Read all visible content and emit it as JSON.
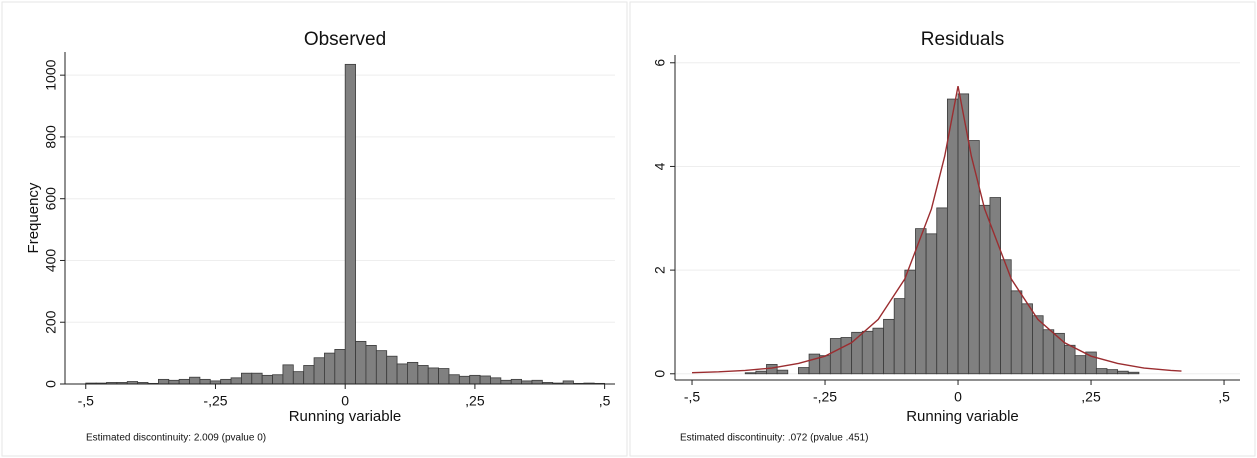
{
  "chart_data": [
    {
      "type": "histogram",
      "title": "Observed",
      "xlabel": "Running variable",
      "ylabel": "Frequency",
      "note": "Estimated discontinuity: 2.009 (pvalue 0)",
      "color": "#808080",
      "edgecolor": "#3a3a3a",
      "bins": [
        -0.5,
        -0.48,
        -0.46,
        -0.44,
        -0.42,
        -0.4,
        -0.38,
        -0.36,
        -0.34,
        -0.32,
        -0.3,
        -0.28,
        -0.26,
        -0.24,
        -0.22,
        -0.2,
        -0.18,
        -0.16,
        -0.14,
        -0.12,
        -0.1,
        -0.08,
        -0.06,
        -0.04,
        -0.02,
        0,
        0.02,
        0.04,
        0.06,
        0.08,
        0.1,
        0.12,
        0.14,
        0.16,
        0.18,
        0.2,
        0.22,
        0.24,
        0.26,
        0.28,
        0.3,
        0.32,
        0.34,
        0.36,
        0.38,
        0.4,
        0.42,
        0.44,
        0.46,
        0.48,
        0.5
      ],
      "values": [
        3,
        3,
        5,
        5,
        8,
        5,
        2,
        15,
        12,
        15,
        22,
        15,
        10,
        15,
        20,
        35,
        35,
        28,
        30,
        62,
        40,
        60,
        85,
        100,
        112,
        1035,
        138,
        125,
        108,
        90,
        65,
        70,
        60,
        52,
        50,
        30,
        25,
        28,
        26,
        20,
        12,
        15,
        10,
        12,
        5,
        3,
        10,
        2,
        3,
        2
      ],
      "xlim": [
        -0.54,
        0.52
      ],
      "xticks": [
        {
          "value": -0.5,
          "label": "-,5"
        },
        {
          "value": -0.25,
          "label": "-,25"
        },
        0,
        {
          "value": 0.25,
          "label": ",25"
        },
        {
          "value": 0.5,
          "label": ",5"
        }
      ],
      "ylim": [
        0,
        1075
      ],
      "yticks": [
        0,
        200,
        400,
        600,
        800,
        1000
      ],
      "grid": true
    },
    {
      "type": "histogram",
      "title": "Residuals",
      "xlabel": "Running variable",
      "note": "Estimated discontinuity: .072 (pvalue .451)",
      "color": "#808080",
      "edgecolor": "#3a3a3a",
      "bins": [
        -0.4,
        -0.38,
        -0.36,
        -0.34,
        -0.32,
        -0.3,
        -0.28,
        -0.26,
        -0.24,
        -0.22,
        -0.2,
        -0.18,
        -0.16,
        -0.14,
        -0.12,
        -0.1,
        -0.08,
        -0.06,
        -0.04,
        -0.02,
        0,
        0.02,
        0.04,
        0.06,
        0.08,
        0.1,
        0.12,
        0.14,
        0.16,
        0.18,
        0.2,
        0.22,
        0.24,
        0.26,
        0.28,
        0.3,
        0.32,
        0.34
      ],
      "values": [
        0.02,
        0.05,
        0.18,
        0.07,
        0,
        0.12,
        0.38,
        0.35,
        0.68,
        0.7,
        0.8,
        0.82,
        0.88,
        1.05,
        1.45,
        2.0,
        2.8,
        2.7,
        3.2,
        5.3,
        5.4,
        4.5,
        3.25,
        3.4,
        2.2,
        1.6,
        1.35,
        1.12,
        0.85,
        0.78,
        0.55,
        0.35,
        0.42,
        0.1,
        0.08,
        0.05,
        0.03
      ],
      "curve": {
        "color": "#9b2d30",
        "x": [
          -0.5,
          -0.45,
          -0.4,
          -0.35,
          -0.3,
          -0.25,
          -0.2,
          -0.15,
          -0.1,
          -0.05,
          -0.025,
          0,
          0.025,
          0.05,
          0.1,
          0.15,
          0.2,
          0.25,
          0.3,
          0.35,
          0.4,
          0.42
        ],
        "values": [
          0.021,
          0.037,
          0.065,
          0.11,
          0.2,
          0.34,
          0.6,
          1.05,
          1.83,
          3.18,
          4.2,
          5.55,
          4.2,
          3.18,
          1.83,
          1.05,
          0.6,
          0.34,
          0.2,
          0.11,
          0.065,
          0.052
        ]
      },
      "xlim": [
        -0.532,
        0.53
      ],
      "xticks": [
        {
          "value": -0.5,
          "label": "-,5"
        },
        {
          "value": -0.25,
          "label": "-,25"
        },
        0,
        {
          "value": 0.25,
          "label": ",25"
        },
        {
          "value": 0.5,
          "label": ",5"
        }
      ],
      "ylim": [
        -0.12,
        6.15
      ],
      "yticks": [
        0,
        2,
        4,
        6
      ],
      "grid": true
    }
  ]
}
